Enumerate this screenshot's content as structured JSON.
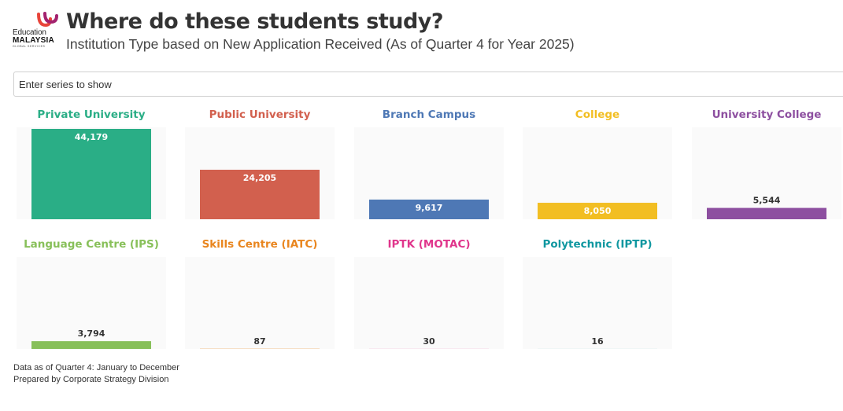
{
  "header": {
    "logo_line1": "Education",
    "logo_line2": "MALAYSIA",
    "logo_line3": "GLOBAL SERVICES",
    "title": "Where do these students study?",
    "subtitle": "Institution Type based on New Application Received (As of Quarter 4 for Year 2025)"
  },
  "search": {
    "placeholder": "Enter series to show"
  },
  "footer": {
    "line1": "Data as of Quarter 4: January to December",
    "line2": "Prepared by Corporate Strategy Division"
  },
  "chart_data": {
    "type": "bar",
    "title": "Where do these students study?",
    "subtitle": "Institution Type based on New Application Received (As of Quarter 4 for Year 2025)",
    "ylim": [
      0,
      44179
    ],
    "panels": [
      {
        "name": "Private University",
        "value": 44179,
        "label": "44,179",
        "color": "#2AAE86"
      },
      {
        "name": "Public University",
        "value": 24205,
        "label": "24,205",
        "color": "#D2604E"
      },
      {
        "name": "Branch Campus",
        "value": 9617,
        "label": "9,617",
        "color": "#4E78B5"
      },
      {
        "name": "College",
        "value": 8050,
        "label": "8,050",
        "color": "#F2BE22"
      },
      {
        "name": "University College",
        "value": 5544,
        "label": "5,544",
        "color": "#8D4FA0"
      },
      {
        "name": "Language Centre (IPS)",
        "value": 3794,
        "label": "3,794",
        "color": "#88C05A"
      },
      {
        "name": "Skills Centre (IATC)",
        "value": 87,
        "label": "87",
        "color": "#E9861F"
      },
      {
        "name": "IPTK (MOTAC)",
        "value": 30,
        "label": "30",
        "color": "#E0368C"
      },
      {
        "name": "Polytechnic (IPTP)",
        "value": 16,
        "label": "16",
        "color": "#0F97A0"
      }
    ]
  }
}
